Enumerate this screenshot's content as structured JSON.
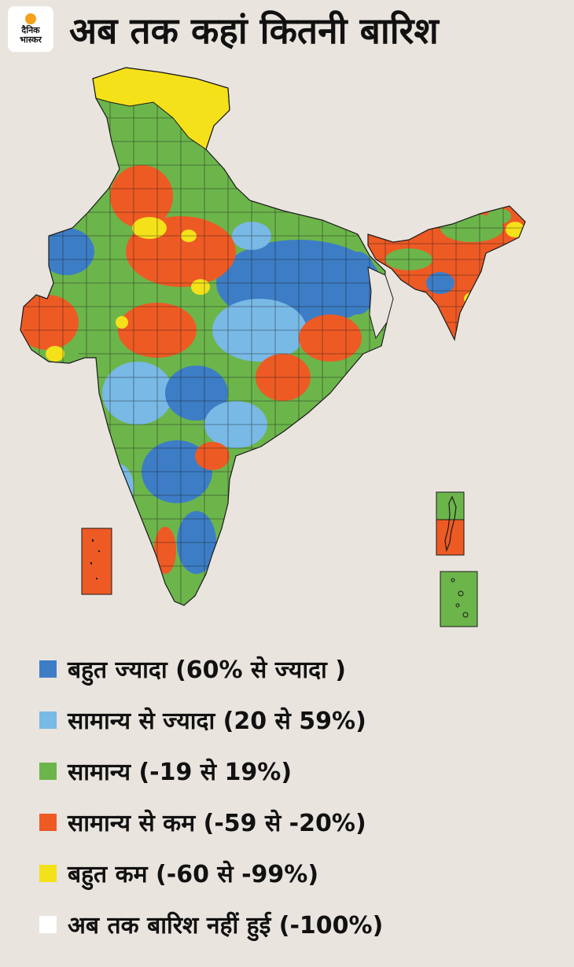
{
  "header": {
    "title": "अब तक कहां कितनी बारिश",
    "logo_line1": "दैनिक",
    "logo_line2": "भास्कर"
  },
  "colors": {
    "very_high": "#3d7dc6",
    "above_normal": "#79b9e6",
    "normal": "#6cb54b",
    "below_normal": "#ee5a24",
    "very_low": "#f5e11a",
    "no_rain": "#ffffff"
  },
  "legend": {
    "items": [
      {
        "label": "बहुत ज्यादा (60% से ज्यादा )",
        "color": "#3d7dc6"
      },
      {
        "label": "सामान्य से ज्यादा (20 से 59%)",
        "color": "#79b9e6"
      },
      {
        "label": "सामान्य (-19 से 19%)",
        "color": "#6cb54b"
      },
      {
        "label": "सामान्य से कम (-59 से -20%)",
        "color": "#ee5a24"
      },
      {
        "label": "बहुत कम (-60 से -99%)",
        "color": "#f5e11a"
      },
      {
        "label": "अब तक बारिश नहीं हुई (-100%)",
        "color": "#ffffff"
      }
    ]
  }
}
